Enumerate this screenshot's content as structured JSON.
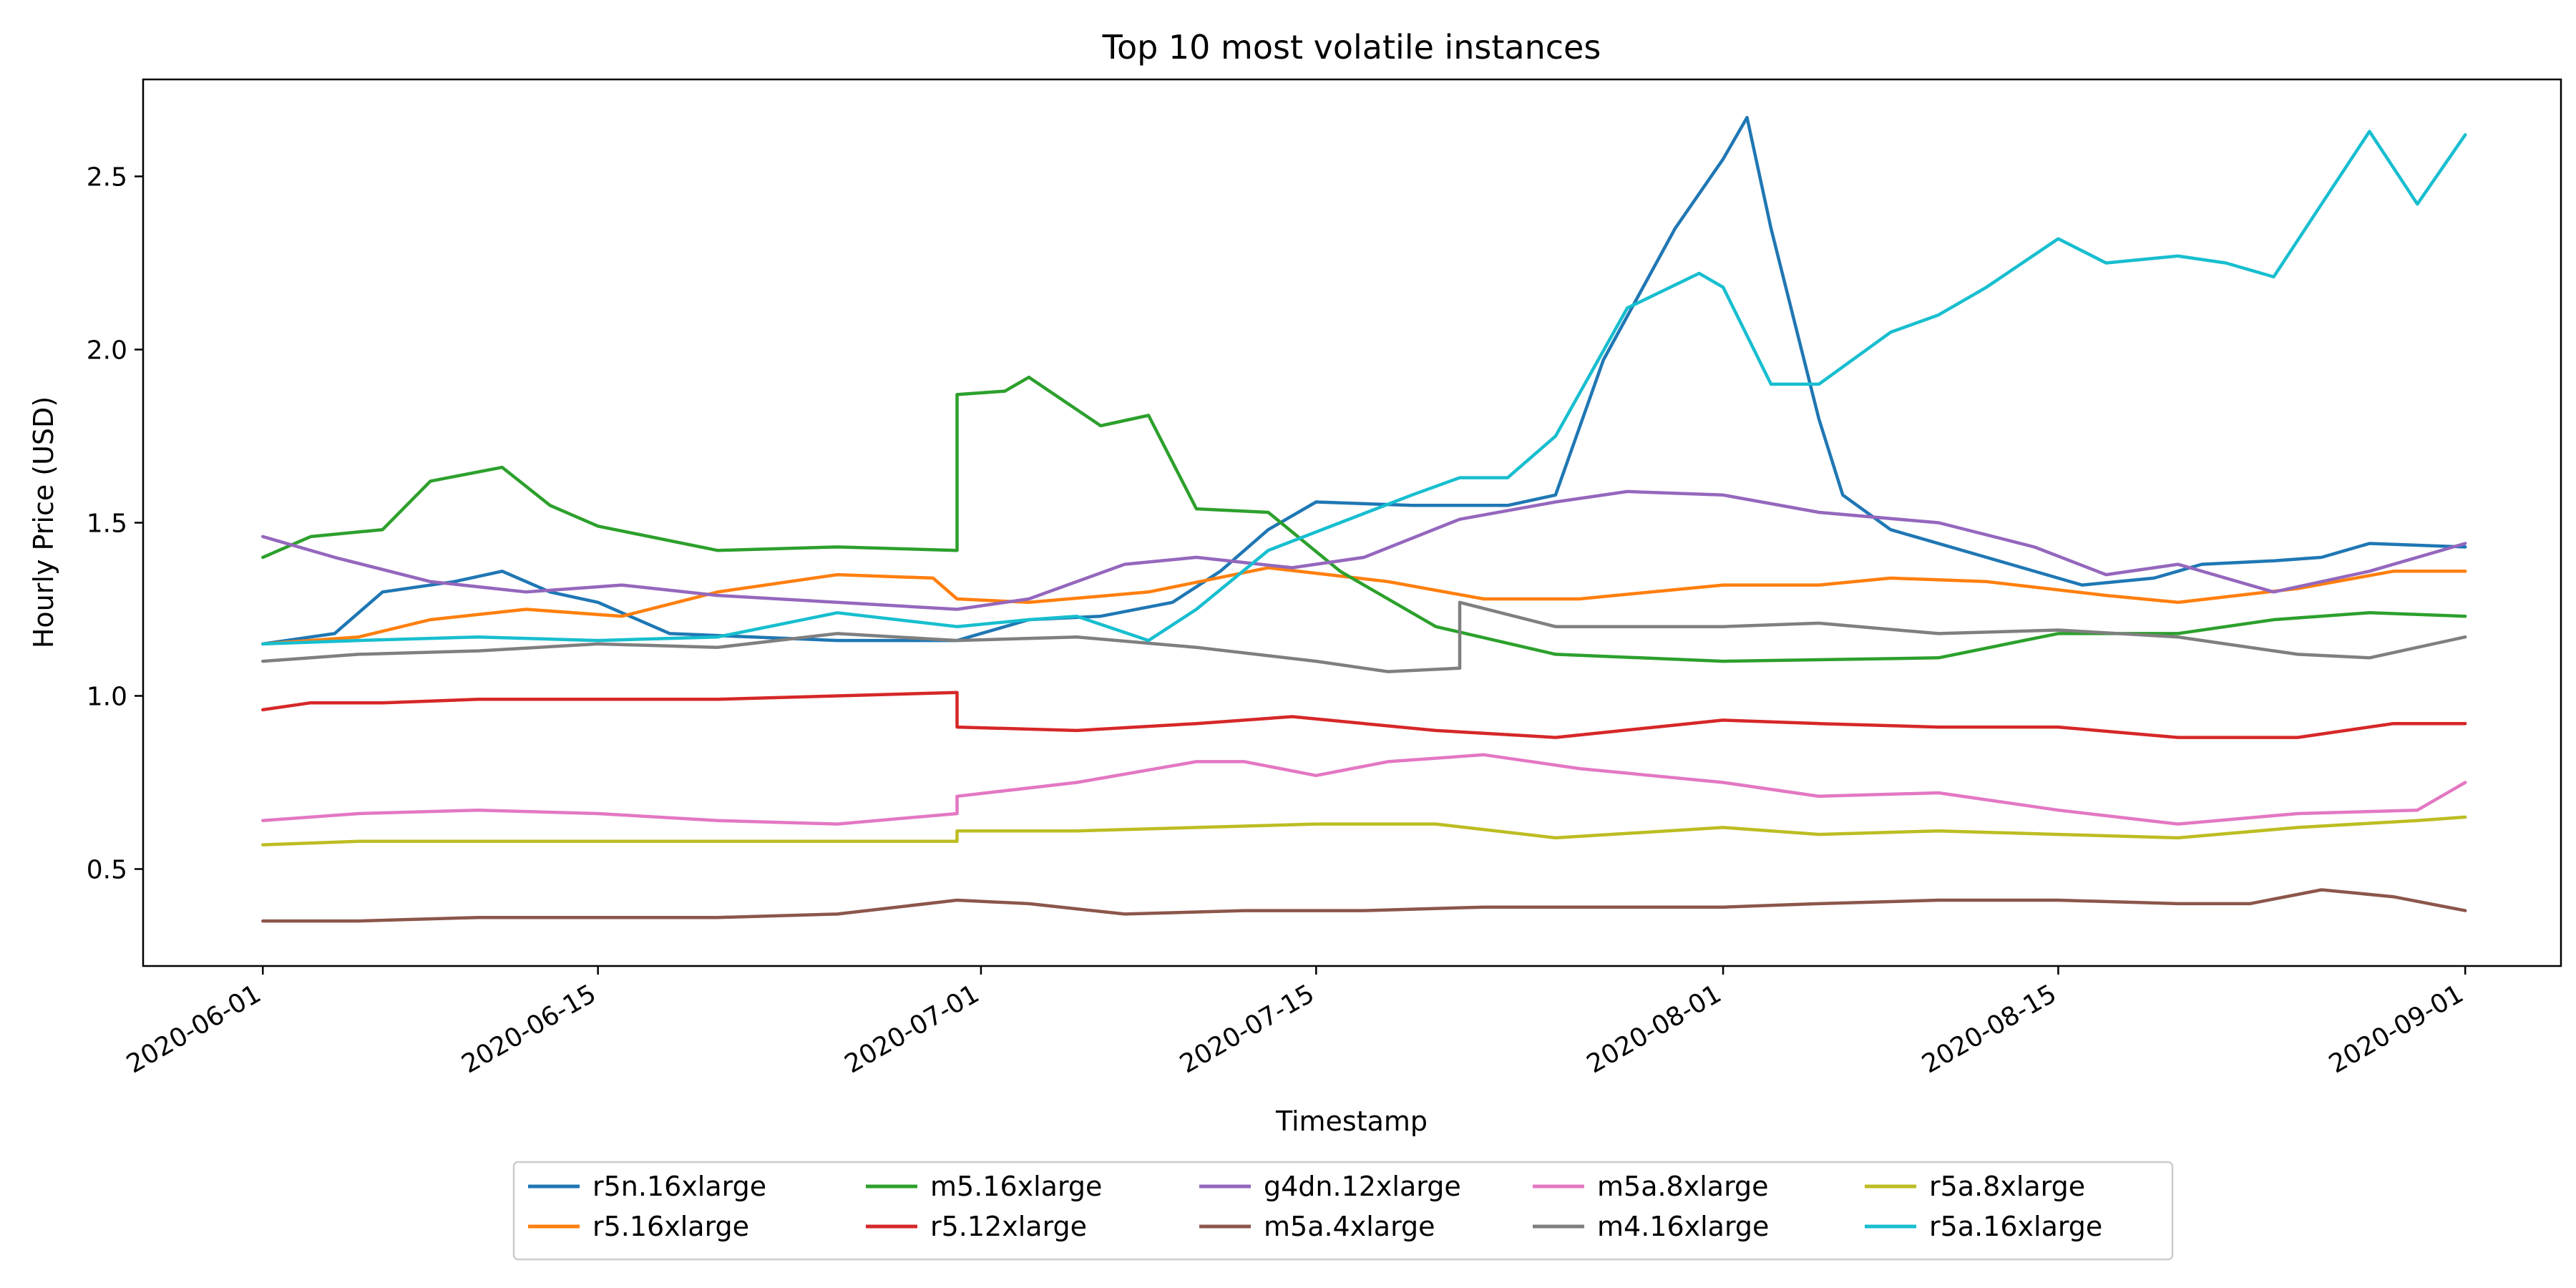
{
  "chart_data": {
    "type": "line",
    "title": "Top 10 most volatile instances",
    "xlabel": "Timestamp",
    "ylabel": "Hourly Price (USD)",
    "x_ticks": [
      "2020-06-01",
      "2020-06-15",
      "2020-07-01",
      "2020-07-15",
      "2020-08-01",
      "2020-08-15",
      "2020-09-01"
    ],
    "y_ticks": [
      "0.5",
      "1.0",
      "1.5",
      "2.0",
      "2.5"
    ],
    "xlim": [
      "2020-05-27",
      "2020-09-05"
    ],
    "ylim": [
      0.22,
      2.78
    ],
    "grid": false,
    "legend_position": "below-center",
    "legend_columns": 5,
    "series": [
      {
        "name": "r5n.16xlarge",
        "color": "#1f77b4",
        "x": [
          "2020-06-01",
          "2020-06-04",
          "2020-06-06",
          "2020-06-09",
          "2020-06-11",
          "2020-06-13",
          "2020-06-15",
          "2020-06-18",
          "2020-06-25",
          "2020-06-30",
          "2020-07-03",
          "2020-07-06",
          "2020-07-09",
          "2020-07-11",
          "2020-07-13",
          "2020-07-15",
          "2020-07-19",
          "2020-07-23",
          "2020-07-25",
          "2020-07-27",
          "2020-07-30",
          "2020-08-01",
          "2020-08-02",
          "2020-08-03",
          "2020-08-05",
          "2020-08-06",
          "2020-08-08",
          "2020-08-12",
          "2020-08-16",
          "2020-08-19",
          "2020-08-21",
          "2020-08-24",
          "2020-08-26",
          "2020-08-28",
          "2020-09-01"
        ],
        "values": [
          1.15,
          1.18,
          1.3,
          1.33,
          1.36,
          1.3,
          1.27,
          1.18,
          1.16,
          1.16,
          1.22,
          1.23,
          1.27,
          1.36,
          1.48,
          1.56,
          1.55,
          1.55,
          1.58,
          1.97,
          2.35,
          2.55,
          2.67,
          2.35,
          1.8,
          1.58,
          1.48,
          1.4,
          1.32,
          1.34,
          1.38,
          1.39,
          1.4,
          1.44,
          1.43
        ]
      },
      {
        "name": "r5.16xlarge",
        "color": "#ff7f0e",
        "x": [
          "2020-06-01",
          "2020-06-05",
          "2020-06-08",
          "2020-06-12",
          "2020-06-16",
          "2020-06-20",
          "2020-06-25",
          "2020-06-29",
          "2020-06-30",
          "2020-07-03",
          "2020-07-08",
          "2020-07-13",
          "2020-07-18",
          "2020-07-22",
          "2020-07-26",
          "2020-08-01",
          "2020-08-05",
          "2020-08-08",
          "2020-08-12",
          "2020-08-17",
          "2020-08-20",
          "2020-08-25",
          "2020-08-29",
          "2020-09-01"
        ],
        "values": [
          1.15,
          1.17,
          1.22,
          1.25,
          1.23,
          1.3,
          1.35,
          1.34,
          1.28,
          1.27,
          1.3,
          1.37,
          1.33,
          1.28,
          1.28,
          1.32,
          1.32,
          1.34,
          1.33,
          1.29,
          1.27,
          1.31,
          1.36,
          1.36
        ]
      },
      {
        "name": "m5.16xlarge",
        "color": "#2ca02c",
        "x": [
          "2020-06-01",
          "2020-06-03",
          "2020-06-06",
          "2020-06-08",
          "2020-06-11",
          "2020-06-13",
          "2020-06-15",
          "2020-06-20",
          "2020-06-25",
          "2020-06-30",
          "2020-06-30",
          "2020-07-02",
          "2020-07-03",
          "2020-07-06",
          "2020-07-08",
          "2020-07-10",
          "2020-07-13",
          "2020-07-16",
          "2020-07-20",
          "2020-07-25",
          "2020-08-01",
          "2020-08-10",
          "2020-08-15",
          "2020-08-20",
          "2020-08-24",
          "2020-08-28",
          "2020-09-01"
        ],
        "values": [
          1.4,
          1.46,
          1.48,
          1.62,
          1.66,
          1.55,
          1.49,
          1.42,
          1.43,
          1.42,
          1.87,
          1.88,
          1.92,
          1.78,
          1.81,
          1.54,
          1.53,
          1.36,
          1.2,
          1.12,
          1.1,
          1.11,
          1.18,
          1.18,
          1.22,
          1.24,
          1.23
        ]
      },
      {
        "name": "r5.12xlarge",
        "color": "#d62728",
        "x": [
          "2020-06-01",
          "2020-06-03",
          "2020-06-06",
          "2020-06-10",
          "2020-06-15",
          "2020-06-20",
          "2020-06-25",
          "2020-06-30",
          "2020-06-30",
          "2020-07-05",
          "2020-07-10",
          "2020-07-14",
          "2020-07-20",
          "2020-07-25",
          "2020-08-01",
          "2020-08-05",
          "2020-08-10",
          "2020-08-15",
          "2020-08-20",
          "2020-08-25",
          "2020-08-29",
          "2020-09-01"
        ],
        "values": [
          0.96,
          0.98,
          0.98,
          0.99,
          0.99,
          0.99,
          1.0,
          1.01,
          0.91,
          0.9,
          0.92,
          0.94,
          0.9,
          0.88,
          0.93,
          0.92,
          0.91,
          0.91,
          0.88,
          0.88,
          0.92,
          0.92
        ]
      },
      {
        "name": "g4dn.12xlarge",
        "color": "#9467bd",
        "x": [
          "2020-06-01",
          "2020-06-04",
          "2020-06-08",
          "2020-06-12",
          "2020-06-16",
          "2020-06-20",
          "2020-06-25",
          "2020-06-30",
          "2020-07-03",
          "2020-07-07",
          "2020-07-10",
          "2020-07-14",
          "2020-07-17",
          "2020-07-21",
          "2020-07-25",
          "2020-07-28",
          "2020-08-01",
          "2020-08-05",
          "2020-08-10",
          "2020-08-14",
          "2020-08-17",
          "2020-08-20",
          "2020-08-24",
          "2020-08-28",
          "2020-09-01"
        ],
        "values": [
          1.46,
          1.4,
          1.33,
          1.3,
          1.32,
          1.29,
          1.27,
          1.25,
          1.28,
          1.38,
          1.4,
          1.37,
          1.4,
          1.51,
          1.56,
          1.59,
          1.58,
          1.53,
          1.5,
          1.43,
          1.35,
          1.38,
          1.3,
          1.36,
          1.44
        ]
      },
      {
        "name": "m5a.4xlarge",
        "color": "#8c564b",
        "x": [
          "2020-06-01",
          "2020-06-05",
          "2020-06-10",
          "2020-06-15",
          "2020-06-20",
          "2020-06-25",
          "2020-06-30",
          "2020-07-03",
          "2020-07-07",
          "2020-07-12",
          "2020-07-17",
          "2020-07-22",
          "2020-07-27",
          "2020-08-01",
          "2020-08-05",
          "2020-08-10",
          "2020-08-15",
          "2020-08-20",
          "2020-08-23",
          "2020-08-26",
          "2020-08-29",
          "2020-09-01"
        ],
        "values": [
          0.35,
          0.35,
          0.36,
          0.36,
          0.36,
          0.37,
          0.41,
          0.4,
          0.37,
          0.38,
          0.38,
          0.39,
          0.39,
          0.39,
          0.4,
          0.41,
          0.41,
          0.4,
          0.4,
          0.44,
          0.42,
          0.38
        ]
      },
      {
        "name": "m5a.8xlarge",
        "color": "#e377c2",
        "x": [
          "2020-06-01",
          "2020-06-05",
          "2020-06-10",
          "2020-06-15",
          "2020-06-20",
          "2020-06-25",
          "2020-06-30",
          "2020-06-30",
          "2020-07-05",
          "2020-07-10",
          "2020-07-12",
          "2020-07-15",
          "2020-07-18",
          "2020-07-22",
          "2020-07-26",
          "2020-08-01",
          "2020-08-05",
          "2020-08-10",
          "2020-08-15",
          "2020-08-20",
          "2020-08-25",
          "2020-08-30",
          "2020-09-01"
        ],
        "values": [
          0.64,
          0.66,
          0.67,
          0.66,
          0.64,
          0.63,
          0.66,
          0.71,
          0.75,
          0.81,
          0.81,
          0.77,
          0.81,
          0.83,
          0.79,
          0.75,
          0.71,
          0.72,
          0.67,
          0.63,
          0.66,
          0.67,
          0.75
        ]
      },
      {
        "name": "m4.16xlarge",
        "color": "#7f7f7f",
        "x": [
          "2020-06-01",
          "2020-06-05",
          "2020-06-10",
          "2020-06-15",
          "2020-06-20",
          "2020-06-25",
          "2020-06-30",
          "2020-07-05",
          "2020-07-10",
          "2020-07-15",
          "2020-07-18",
          "2020-07-21",
          "2020-07-21",
          "2020-07-25",
          "2020-08-01",
          "2020-08-05",
          "2020-08-10",
          "2020-08-15",
          "2020-08-20",
          "2020-08-25",
          "2020-08-28",
          "2020-09-01"
        ],
        "values": [
          1.1,
          1.12,
          1.13,
          1.15,
          1.14,
          1.18,
          1.16,
          1.17,
          1.14,
          1.1,
          1.07,
          1.08,
          1.27,
          1.2,
          1.2,
          1.21,
          1.18,
          1.19,
          1.17,
          1.12,
          1.11,
          1.17
        ]
      },
      {
        "name": "r5a.8xlarge",
        "color": "#bcbd22",
        "x": [
          "2020-06-01",
          "2020-06-05",
          "2020-06-10",
          "2020-06-15",
          "2020-06-20",
          "2020-06-25",
          "2020-06-30",
          "2020-06-30",
          "2020-07-05",
          "2020-07-10",
          "2020-07-15",
          "2020-07-20",
          "2020-07-25",
          "2020-08-01",
          "2020-08-05",
          "2020-08-10",
          "2020-08-15",
          "2020-08-20",
          "2020-08-25",
          "2020-08-30",
          "2020-09-01"
        ],
        "values": [
          0.57,
          0.58,
          0.58,
          0.58,
          0.58,
          0.58,
          0.58,
          0.61,
          0.61,
          0.62,
          0.63,
          0.63,
          0.59,
          0.62,
          0.6,
          0.61,
          0.6,
          0.59,
          0.62,
          0.64,
          0.65
        ]
      },
      {
        "name": "r5a.16xlarge",
        "color": "#17becf",
        "x": [
          "2020-06-01",
          "2020-06-05",
          "2020-06-10",
          "2020-06-15",
          "2020-06-20",
          "2020-06-25",
          "2020-06-30",
          "2020-07-03",
          "2020-07-05",
          "2020-07-08",
          "2020-07-10",
          "2020-07-13",
          "2020-07-16",
          "2020-07-19",
          "2020-07-21",
          "2020-07-23",
          "2020-07-25",
          "2020-07-28",
          "2020-07-31",
          "2020-08-01",
          "2020-08-03",
          "2020-08-05",
          "2020-08-08",
          "2020-08-10",
          "2020-08-12",
          "2020-08-15",
          "2020-08-17",
          "2020-08-20",
          "2020-08-22",
          "2020-08-24",
          "2020-08-26",
          "2020-08-28",
          "2020-08-30",
          "2020-09-01"
        ],
        "values": [
          1.15,
          1.16,
          1.17,
          1.16,
          1.17,
          1.24,
          1.2,
          1.22,
          1.23,
          1.16,
          1.25,
          1.42,
          1.5,
          1.58,
          1.63,
          1.63,
          1.75,
          2.12,
          2.22,
          2.18,
          1.9,
          1.9,
          2.05,
          2.1,
          2.18,
          2.32,
          2.25,
          2.27,
          2.25,
          2.21,
          2.42,
          2.63,
          2.42,
          2.62
        ]
      }
    ]
  }
}
